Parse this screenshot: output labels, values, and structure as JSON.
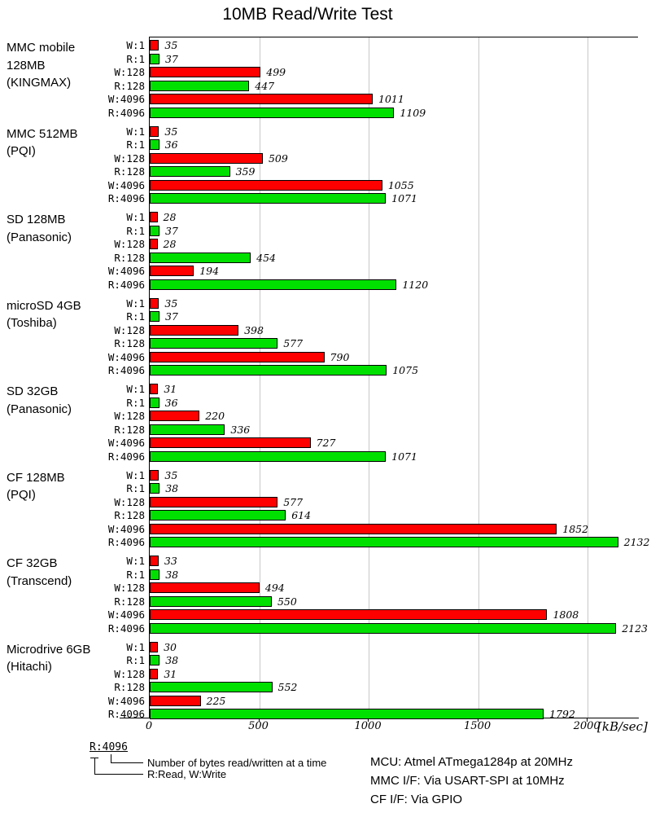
{
  "title": "10MB Read/Write Test",
  "chart_data": {
    "type": "bar",
    "orientation": "horizontal",
    "title": "10MB Read/Write Test",
    "xlabel": "[kB/sec]",
    "unit": "kB/sec",
    "x_ticks": [
      0,
      500,
      1000,
      1500,
      2000
    ],
    "x_axis_max": 2230,
    "grid": "vertical gridlines every 500",
    "bar_categories": [
      "W:1",
      "R:1",
      "W:128",
      "R:128",
      "W:4096",
      "R:4096"
    ],
    "colors": {
      "write": "#ff0000",
      "read": "#00e000",
      "bar_border": "#000000",
      "gridline": "#c8c8c8"
    },
    "groups": [
      {
        "label_lines": [
          "MMC mobile",
          "128MB",
          "(KINGMAX)"
        ],
        "values": [
          35,
          37,
          499,
          447,
          1011,
          1109
        ]
      },
      {
        "label_lines": [
          "MMC 512MB",
          "(PQI)"
        ],
        "values": [
          35,
          36,
          509,
          359,
          1055,
          1071
        ]
      },
      {
        "label_lines": [
          "SD 128MB",
          "(Panasonic)"
        ],
        "values": [
          28,
          37,
          28,
          454,
          194,
          1120
        ]
      },
      {
        "label_lines": [
          "microSD 4GB",
          "(Toshiba)"
        ],
        "values": [
          35,
          37,
          398,
          577,
          790,
          1075
        ]
      },
      {
        "label_lines": [
          "SD 32GB",
          "(Panasonic)"
        ],
        "values": [
          31,
          36,
          220,
          336,
          727,
          1071
        ]
      },
      {
        "label_lines": [
          "CF 128MB",
          "(PQI)"
        ],
        "values": [
          35,
          38,
          577,
          614,
          1852,
          2132
        ]
      },
      {
        "label_lines": [
          "CF 32GB",
          "(Transcend)"
        ],
        "values": [
          33,
          38,
          494,
          550,
          1808,
          2123
        ]
      },
      {
        "label_lines": [
          "Microdrive 6GB",
          "(Hitachi)"
        ],
        "values": [
          30,
          38,
          31,
          552,
          225,
          1792
        ]
      }
    ]
  },
  "legend": {
    "example": "R:4096",
    "note_bytes": "Number of bytes read/written at a time",
    "note_rw": "R:Read, W:Write"
  },
  "notes": [
    "MCU: Atmel ATmega1284p at 20MHz",
    "MMC I/F: Via USART-SPI at 10MHz",
    "CF I/F: Via GPIO"
  ]
}
